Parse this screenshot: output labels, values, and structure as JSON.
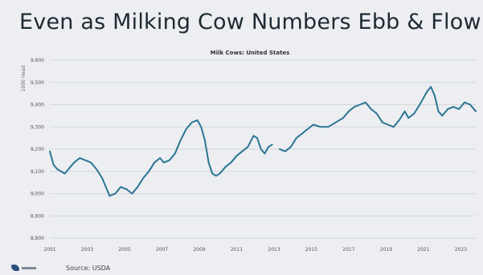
{
  "slide": {
    "title": "Even as Milking Cow Numbers Ebb & Flow",
    "source": "Source: USDA"
  },
  "chart_data": {
    "type": "line",
    "title": "Milk Cows: United States",
    "ylabel": "1000 Head",
    "xlabel": "",
    "ylim": [
      8800,
      9600
    ],
    "xlim": [
      2001,
      2023.8
    ],
    "y_ticks": [
      "9,600",
      "9,500",
      "9,400",
      "9,300",
      "9,200",
      "9,100",
      "9,000",
      "8,900",
      "8,800"
    ],
    "y_tick_values": [
      9600,
      9500,
      9400,
      9300,
      9200,
      9100,
      9000,
      8900,
      8800
    ],
    "x_ticks": [
      "2001",
      "2003",
      "2005",
      "2007",
      "2009",
      "2011",
      "2013",
      "2015",
      "2017",
      "2019",
      "2021",
      "2023"
    ],
    "x_tick_values": [
      2001,
      2003,
      2005,
      2007,
      2009,
      2011,
      2013,
      2015,
      2017,
      2019,
      2021,
      2023
    ],
    "grid": true,
    "series": [
      {
        "color": "#2b7594",
        "segments": [
          [
            [
              2001.0,
              9190
            ],
            [
              2001.2,
              9130
            ],
            [
              2001.4,
              9110
            ],
            [
              2001.6,
              9100
            ],
            [
              2001.8,
              9090
            ],
            [
              2002.0,
              9110
            ],
            [
              2002.3,
              9140
            ],
            [
              2002.6,
              9160
            ],
            [
              2002.9,
              9150
            ],
            [
              2003.2,
              9140
            ],
            [
              2003.5,
              9110
            ],
            [
              2003.8,
              9070
            ],
            [
              2004.0,
              9030
            ],
            [
              2004.2,
              8990
            ],
            [
              2004.5,
              9000
            ],
            [
              2004.8,
              9030
            ],
            [
              2005.1,
              9020
            ],
            [
              2005.4,
              9000
            ],
            [
              2005.7,
              9030
            ],
            [
              2006.0,
              9070
            ],
            [
              2006.3,
              9100
            ],
            [
              2006.6,
              9140
            ],
            [
              2006.9,
              9160
            ],
            [
              2007.1,
              9140
            ],
            [
              2007.4,
              9150
            ],
            [
              2007.7,
              9180
            ],
            [
              2008.0,
              9240
            ],
            [
              2008.3,
              9290
            ],
            [
              2008.6,
              9320
            ],
            [
              2008.9,
              9330
            ],
            [
              2009.1,
              9300
            ],
            [
              2009.3,
              9240
            ],
            [
              2009.5,
              9140
            ],
            [
              2009.7,
              9090
            ],
            [
              2009.9,
              9080
            ],
            [
              2010.1,
              9090
            ],
            [
              2010.4,
              9120
            ],
            [
              2010.7,
              9140
            ],
            [
              2011.0,
              9170
            ],
            [
              2011.3,
              9190
            ],
            [
              2011.6,
              9210
            ],
            [
              2011.9,
              9260
            ],
            [
              2012.1,
              9250
            ],
            [
              2012.3,
              9200
            ],
            [
              2012.5,
              9180
            ],
            [
              2012.7,
              9210
            ],
            [
              2012.9,
              9220
            ]
          ],
          [
            [
              2013.3,
              9200
            ],
            [
              2013.6,
              9190
            ],
            [
              2013.9,
              9210
            ],
            [
              2014.2,
              9250
            ],
            [
              2014.5,
              9270
            ],
            [
              2014.8,
              9290
            ],
            [
              2015.1,
              9310
            ],
            [
              2015.5,
              9300
            ],
            [
              2015.9,
              9300
            ],
            [
              2016.3,
              9320
            ],
            [
              2016.7,
              9340
            ],
            [
              2017.0,
              9370
            ],
            [
              2017.3,
              9390
            ],
            [
              2017.6,
              9400
            ],
            [
              2017.9,
              9410
            ],
            [
              2018.2,
              9380
            ],
            [
              2018.5,
              9360
            ],
            [
              2018.8,
              9320
            ],
            [
              2019.1,
              9310
            ],
            [
              2019.4,
              9300
            ],
            [
              2019.7,
              9330
            ],
            [
              2020.0,
              9370
            ],
            [
              2020.2,
              9340
            ],
            [
              2020.5,
              9360
            ],
            [
              2020.8,
              9400
            ],
            [
              2021.0,
              9430
            ],
            [
              2021.2,
              9460
            ],
            [
              2021.4,
              9480
            ],
            [
              2021.6,
              9440
            ],
            [
              2021.8,
              9370
            ],
            [
              2022.0,
              9350
            ],
            [
              2022.3,
              9380
            ],
            [
              2022.6,
              9390
            ],
            [
              2022.9,
              9380
            ],
            [
              2023.2,
              9410
            ],
            [
              2023.5,
              9400
            ],
            [
              2023.8,
              9370
            ]
          ]
        ]
      }
    ]
  }
}
